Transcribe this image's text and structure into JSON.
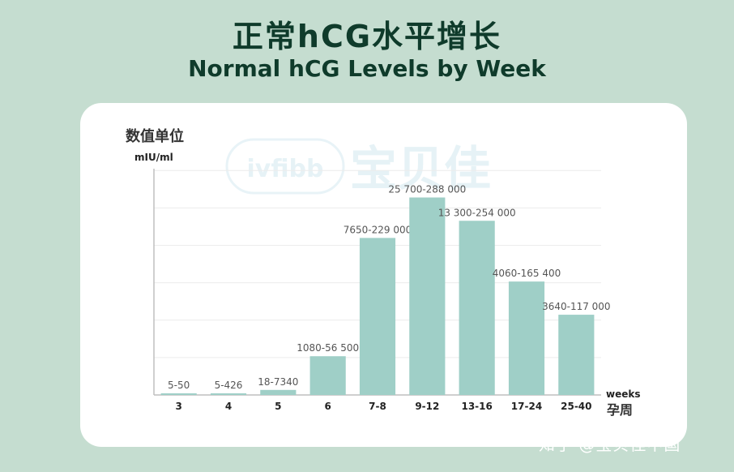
{
  "header": {
    "title_cn": "正常hCG水平增长",
    "title_en": "Normal hCG Levels by Week"
  },
  "watermark": {
    "brand_latin": "ivfibb",
    "brand_cn": "宝贝佳"
  },
  "footer": {
    "credit": "知乎 @宝贝佳中国"
  },
  "chart_data": {
    "type": "bar",
    "ylabel": "数值单位",
    "yunit": "mIU/ml",
    "xlabel": "weeks",
    "xlabel_cn": "孕周",
    "categories": [
      "3",
      "4",
      "5",
      "6",
      "7-8",
      "9-12",
      "13-16",
      "17-24",
      "25-40"
    ],
    "labels": [
      "5-50",
      "5-426",
      "18-7340",
      "1080-56 500",
      "7650-229 000",
      "25 700-288 000",
      "13 300-254 000",
      "4060-165 400",
      "3640-117 000"
    ],
    "values": [
      50,
      426,
      7340,
      56500,
      229000,
      288000,
      254000,
      165400,
      117000
    ],
    "ylim": [
      0,
      330000
    ],
    "grid": true,
    "bar_color": "#9fcfc7"
  }
}
